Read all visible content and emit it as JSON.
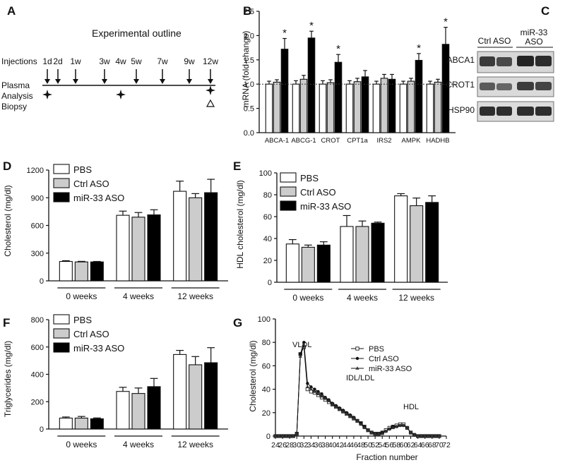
{
  "panel_letters": {
    "a": "A",
    "b": "B",
    "c": "C",
    "d": "D",
    "e": "E",
    "f": "F",
    "g": "G"
  },
  "panel_a": {
    "title": "Experimental outline",
    "injections_label": "Injections",
    "plasma_label": "Plasma",
    "analysis_label": "Analysis",
    "biopsy_label": "Biopsy",
    "timepoints": [
      "1d",
      "2d",
      "1w",
      "3w",
      "4w",
      "5w",
      "7w",
      "9w",
      "12w"
    ],
    "injection_timepoints": [
      "1d",
      "2d",
      "1w",
      "3w",
      "5w",
      "7w",
      "9w",
      "12w"
    ],
    "analysis_timepoints": [
      "1d",
      "4w",
      "12w"
    ],
    "biopsy_timepoints": [
      "12w"
    ]
  },
  "panel_c": {
    "headers": [
      "Ctrl ASO",
      "miR-33 ASO"
    ],
    "rows": [
      "ABCA1",
      "CROT1",
      "HSP90"
    ]
  },
  "chart_data": [
    {
      "id": "B",
      "type": "bar",
      "ylabel": "mRNA (fold-change)",
      "ylim": [
        0,
        2.5
      ],
      "yticks": [
        0.0,
        0.5,
        1.0,
        1.5,
        2.0,
        2.5
      ],
      "categories": [
        "ABCA-1",
        "ABCG-1",
        "CROT",
        "CPT1a",
        "IRS2",
        "AMPK",
        "HADHB"
      ],
      "reference_line": 1.0,
      "series": [
        {
          "name": "PBS",
          "color": "#ffffff",
          "values": [
            1.0,
            1.0,
            1.0,
            1.0,
            1.0,
            1.0,
            1.0
          ],
          "errors": [
            0.06,
            0.07,
            0.07,
            0.07,
            0.06,
            0.06,
            0.06
          ]
        },
        {
          "name": "Ctrl ASO",
          "color": "#cccccc",
          "values": [
            1.04,
            1.1,
            1.03,
            1.05,
            1.12,
            1.06,
            1.04
          ],
          "errors": [
            0.05,
            0.08,
            0.06,
            0.07,
            0.08,
            0.06,
            0.06
          ]
        },
        {
          "name": "miR-33 ASO",
          "color": "#000000",
          "values": [
            1.72,
            1.95,
            1.45,
            1.15,
            1.1,
            1.49,
            1.82
          ],
          "errors": [
            0.22,
            0.14,
            0.16,
            0.13,
            0.1,
            0.14,
            0.35
          ]
        }
      ],
      "significance": [
        "*",
        "*",
        "*",
        "",
        "",
        "*",
        "*"
      ]
    },
    {
      "id": "D",
      "type": "bar",
      "ylabel": "Cholesterol (mg/dl)",
      "ylim": [
        0,
        1200
      ],
      "yticks": [
        0,
        300,
        600,
        900,
        1200
      ],
      "categories": [
        "0 weeks",
        "4 weeks",
        "12 weeks"
      ],
      "series": [
        {
          "name": "PBS",
          "color": "#ffffff",
          "values": [
            210,
            710,
            970
          ],
          "errors": [
            8,
            45,
            110
          ]
        },
        {
          "name": "Ctrl ASO",
          "color": "#cccccc",
          "values": [
            205,
            690,
            900
          ],
          "errors": [
            6,
            50,
            45
          ]
        },
        {
          "name": "miR-33 ASO",
          "color": "#000000",
          "values": [
            205,
            715,
            955
          ],
          "errors": [
            5,
            55,
            145
          ]
        }
      ]
    },
    {
      "id": "E",
      "type": "bar",
      "ylabel": "HDL cholesterol (mg/dl)",
      "ylim": [
        0,
        100
      ],
      "yticks": [
        0,
        20,
        40,
        60,
        80,
        100
      ],
      "categories": [
        "0 weeks",
        "4 weeks",
        "12 weeks"
      ],
      "series": [
        {
          "name": "PBS",
          "color": "#ffffff",
          "values": [
            35,
            51,
            79
          ],
          "errors": [
            4,
            10,
            2
          ]
        },
        {
          "name": "Ctrl ASO",
          "color": "#cccccc",
          "values": [
            32,
            51,
            70
          ],
          "errors": [
            2,
            5,
            7
          ]
        },
        {
          "name": "miR-33 ASO",
          "color": "#000000",
          "values": [
            34,
            54,
            73
          ],
          "errors": [
            3,
            1,
            6
          ]
        }
      ]
    },
    {
      "id": "F",
      "type": "bar",
      "ylabel": "Triglycerides (mg/dl)",
      "ylim": [
        0,
        800
      ],
      "yticks": [
        0,
        200,
        400,
        600,
        800
      ],
      "categories": [
        "0 weeks",
        "4 weeks",
        "12 weeks"
      ],
      "series": [
        {
          "name": "PBS",
          "color": "#ffffff",
          "values": [
            80,
            275,
            545
          ],
          "errors": [
            8,
            30,
            30
          ]
        },
        {
          "name": "Ctrl ASO",
          "color": "#cccccc",
          "values": [
            80,
            260,
            470
          ],
          "errors": [
            12,
            40,
            60
          ]
        },
        {
          "name": "miR-33 ASO",
          "color": "#000000",
          "values": [
            75,
            310,
            485
          ],
          "errors": [
            6,
            60,
            110
          ]
        }
      ]
    },
    {
      "id": "G",
      "type": "line",
      "xlabel": "Fraction number",
      "ylabel": "Cholesterol (mg/dl)",
      "xlim": [
        24,
        72
      ],
      "ylim": [
        0,
        100
      ],
      "xticks": [
        24,
        26,
        28,
        30,
        32,
        34,
        36,
        38,
        40,
        42,
        44,
        46,
        48,
        50,
        52,
        54,
        56,
        58,
        60,
        62,
        64,
        66,
        68,
        70,
        72
      ],
      "yticks": [
        0,
        20,
        40,
        60,
        80,
        100
      ],
      "annotations": [
        "VLDL",
        "IDL/LDL",
        "HDL"
      ],
      "x": [
        24,
        25,
        26,
        27,
        28,
        29,
        30,
        31,
        32,
        33,
        34,
        35,
        36,
        37,
        38,
        39,
        40,
        41,
        42,
        43,
        44,
        45,
        46,
        47,
        48,
        49,
        50,
        51,
        52,
        53,
        54,
        55,
        56,
        57,
        58,
        59,
        60,
        61,
        62,
        63,
        64,
        65,
        66,
        67,
        68,
        69,
        70
      ],
      "series": [
        {
          "name": "PBS",
          "marker": "open-square",
          "values": [
            0,
            0,
            0,
            0,
            0,
            0,
            2,
            70,
            76,
            40,
            38,
            37,
            35,
            33,
            31,
            29,
            27,
            25,
            23,
            21,
            19,
            17,
            15,
            13,
            11,
            8,
            5,
            3,
            2,
            2,
            3,
            5,
            7,
            8,
            9,
            10,
            10,
            7,
            3,
            1,
            0,
            0,
            0,
            0,
            0,
            0,
            0
          ]
        },
        {
          "name": "Ctrl ASO",
          "marker": "filled-circle",
          "values": [
            0,
            0,
            0,
            0,
            0,
            0,
            2,
            70,
            80,
            45,
            42,
            40,
            38,
            36,
            33,
            31,
            28,
            26,
            24,
            22,
            20,
            18,
            16,
            13,
            11,
            8,
            5,
            3,
            2,
            2,
            3,
            4,
            6,
            8,
            8,
            9,
            9,
            7,
            3,
            1,
            0,
            0,
            0,
            0,
            0,
            0,
            0
          ]
        },
        {
          "name": "miR-33 ASO",
          "marker": "filled-triangle",
          "values": [
            0,
            0,
            0,
            0,
            0,
            0,
            2,
            68,
            78,
            42,
            40,
            38,
            36,
            34,
            32,
            30,
            27,
            25,
            23,
            21,
            19,
            17,
            15,
            13,
            10,
            7,
            5,
            3,
            2,
            2,
            2,
            4,
            6,
            7,
            8,
            9,
            9,
            7,
            3,
            1,
            0,
            0,
            0,
            0,
            0,
            0,
            0
          ]
        }
      ]
    }
  ]
}
